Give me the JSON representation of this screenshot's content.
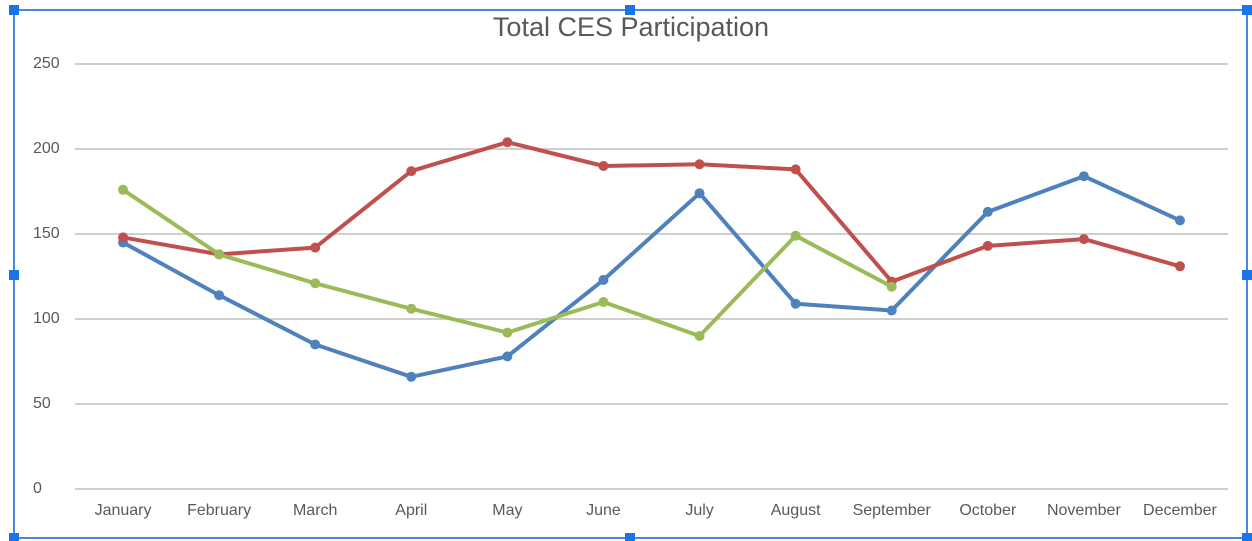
{
  "chart_data": {
    "type": "line",
    "title": "Total CES Participation",
    "categories": [
      "January",
      "February",
      "March",
      "April",
      "May",
      "June",
      "July",
      "August",
      "September",
      "October",
      "November",
      "December"
    ],
    "series": [
      {
        "color": "#4f81bd",
        "values": [
          145,
          114,
          85,
          66,
          78,
          123,
          174,
          109,
          105,
          163,
          184,
          158
        ]
      },
      {
        "color": "#c0504d",
        "values": [
          148,
          138,
          142,
          187,
          204,
          190,
          191,
          188,
          122,
          143,
          147,
          131
        ]
      },
      {
        "color": "#9bbb59",
        "values": [
          176,
          138,
          121,
          106,
          92,
          110,
          90,
          149,
          119,
          null,
          null,
          null
        ]
      }
    ],
    "ylim": [
      0,
      250
    ],
    "yticks": [
      0,
      50,
      100,
      150,
      200,
      250
    ],
    "grid": true
  }
}
